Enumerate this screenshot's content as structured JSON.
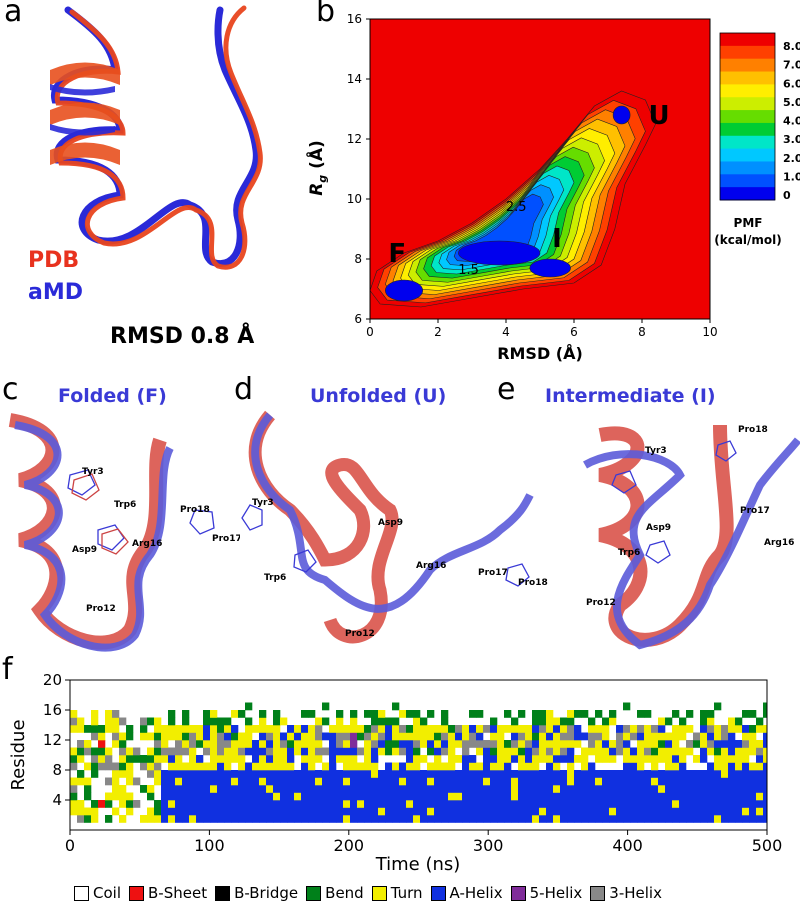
{
  "panels": {
    "a": {
      "letter": "a",
      "label_pdb": "PDB",
      "label_amd": "aMD",
      "rmsd_text": "RMSD 0.8 Å"
    },
    "b": {
      "letter": "b"
    },
    "c": {
      "letter": "c",
      "title": "Folded (F)",
      "residues": [
        "Tyr3",
        "Trp6",
        "Asp9",
        "Pro12",
        "Arg16",
        "Pro17",
        "Pro18"
      ]
    },
    "d": {
      "letter": "d",
      "title": "Unfolded (U)",
      "residues": [
        "Tyr3",
        "Trp6",
        "Asp9",
        "Pro12",
        "Arg16",
        "Pro17",
        "Pro18"
      ]
    },
    "e": {
      "letter": "e",
      "title": "Intermediate (I)",
      "residues": [
        "Tyr3",
        "Trp6",
        "Asp9",
        "Pro12",
        "Arg16",
        "Pro17",
        "Pro18"
      ]
    },
    "f": {
      "letter": "f"
    }
  },
  "colors": {
    "pdb": "#e8321e",
    "amd": "#2a2ad8",
    "ribbon_red": "#d9534a",
    "ribbon_blue": "#5b5bd9"
  },
  "chart_data": [
    {
      "type": "heatmap",
      "panel": "b",
      "xlabel": "RMSD (Å)",
      "ylabel_main": "R",
      "ylabel_sub": "g",
      "ylabel_unit": " (Å)",
      "xlim": [
        0,
        10
      ],
      "ylim": [
        6,
        16
      ],
      "xticks": [
        "0",
        "2",
        "4",
        "6",
        "8",
        "10"
      ],
      "yticks": [
        "6",
        "8",
        "10",
        "12",
        "14",
        "16"
      ],
      "colorbar": {
        "title": "PMF",
        "unit": "(kcal/mol)",
        "ticks": [
          "8.0",
          "7.0",
          "6.0",
          "5.0",
          "4.0",
          "3.0",
          "2.0",
          "1.0",
          "0"
        ],
        "levels": [
          "#0000ee",
          "#0050ff",
          "#0090ff",
          "#00c8ff",
          "#00e6c8",
          "#00cc33",
          "#66dd00",
          "#ccee00",
          "#ffee00",
          "#ffc000",
          "#ff8000",
          "#ff4000",
          "#ee0000"
        ]
      },
      "contour_labels": [
        {
          "text": "2.5",
          "x": 4.3,
          "y": 9.6
        },
        {
          "text": "1.5",
          "x": 2.9,
          "y": 7.5
        }
      ],
      "state_labels": [
        {
          "text": "F",
          "x": 0.8,
          "y": 7.9
        },
        {
          "text": "I",
          "x": 5.5,
          "y": 8.4
        },
        {
          "text": "U",
          "x": 8.5,
          "y": 12.5
        }
      ]
    },
    {
      "type": "heatmap",
      "panel": "f",
      "xlabel": "Time (ns)",
      "ylabel": "Residue",
      "xlim": [
        0,
        500
      ],
      "ylim": [
        0,
        20
      ],
      "xticks": [
        "0",
        "100",
        "200",
        "300",
        "400",
        "500"
      ],
      "yticks": [
        "4",
        "8",
        "12",
        "16",
        "20"
      ],
      "legend": [
        {
          "name": "Coil",
          "color": "#ffffff"
        },
        {
          "name": "B-Sheet",
          "color": "#ee1111"
        },
        {
          "name": "B-Bridge",
          "color": "#000000"
        },
        {
          "name": "Bend",
          "color": "#00801a"
        },
        {
          "name": "Turn",
          "color": "#f2ee00"
        },
        {
          "name": "A-Helix",
          "color": "#1030e0"
        },
        {
          "name": "5-Helix",
          "color": "#802c9a"
        },
        {
          "name": "3-Helix",
          "color": "#888888"
        }
      ]
    }
  ]
}
